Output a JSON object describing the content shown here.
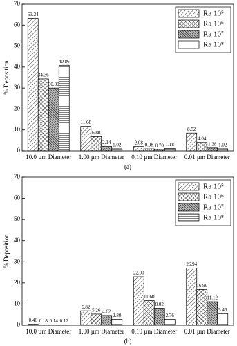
{
  "chart_data": [
    {
      "type": "bar",
      "caption": "(a)",
      "ylabel": "% Deposition",
      "categories": [
        "10.0 µm Diameter",
        "1.00 µm Diameter",
        "0.10 µm Diameter",
        "0.01 µm Diameter"
      ],
      "series": [
        {
          "name": "Ra 10⁵",
          "color": "#000000",
          "hatch": "diagonal",
          "values": [
            63.24,
            11.68,
            2.08,
            8.52
          ],
          "value_labels": [
            "63.24",
            "11.68",
            "2.08",
            "8.52"
          ]
        },
        {
          "name": "Ra 10⁶",
          "color": "#000000",
          "hatch": "cross",
          "values": [
            34.36,
            6.8,
            0.98,
            4.04
          ],
          "value_labels": [
            "34.36",
            "6.80",
            "0.98",
            "4.04"
          ]
        },
        {
          "name": "Ra 10⁷",
          "color": "#000000",
          "hatch": "dense",
          "values": [
            30.0,
            2.14,
            0.7,
            1.38
          ],
          "value_labels": [
            "30.00",
            "2.14",
            "0.70",
            "1.38"
          ]
        },
        {
          "name": "Ra 10⁸",
          "color": "#000000",
          "hatch": "horizontal",
          "values": [
            40.86,
            1.02,
            1.18,
            1.02
          ],
          "value_labels": [
            "40.86",
            "1.02",
            "1.18",
            "1.02"
          ]
        }
      ],
      "ylim": [
        0,
        70
      ],
      "yticks": [
        0,
        10,
        20,
        30,
        40,
        50,
        60,
        70
      ],
      "legend": "upper right"
    },
    {
      "type": "bar",
      "caption": "(b)",
      "ylabel": "% Deposition",
      "categories": [
        "10.0 µm Diameter",
        "1.00 µm Diameter",
        "0.10 µm Diameter",
        "0.01 µm Diameter"
      ],
      "series": [
        {
          "name": "Ra 10⁵",
          "color": "#000000",
          "hatch": "diagonal",
          "values": [
            0.46,
            6.82,
            22.9,
            26.94
          ],
          "value_labels": [
            "0.46",
            "6.82",
            "22.90",
            "26.94"
          ]
        },
        {
          "name": "Ra 10⁶",
          "color": "#000000",
          "hatch": "cross",
          "values": [
            0.18,
            5.26,
            11.6,
            16.9
          ],
          "value_labels": [
            "0.18",
            "5.26",
            "11.60",
            "16.90"
          ]
        },
        {
          "name": "Ra 10⁷",
          "color": "#000000",
          "hatch": "dense",
          "values": [
            0.14,
            4.62,
            8.02,
            11.12
          ],
          "value_labels": [
            "0.14",
            "4.62",
            "8.02",
            "11.12"
          ]
        },
        {
          "name": "Ra 10⁸",
          "color": "#000000",
          "hatch": "horizontal",
          "values": [
            0.12,
            2.8,
            2.76,
            5.46
          ],
          "value_labels": [
            "0.12",
            "2.80",
            "2.76",
            "5.46"
          ]
        }
      ],
      "ylim": [
        0,
        70
      ],
      "yticks": [
        0,
        10,
        20,
        30,
        40,
        50,
        60,
        70
      ],
      "legend": "upper right"
    }
  ]
}
